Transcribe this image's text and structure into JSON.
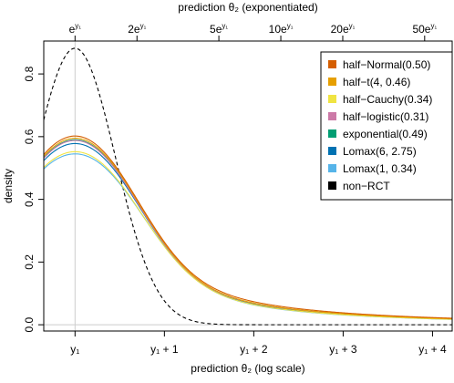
{
  "chart_data": {
    "type": "line",
    "xlabel": "prediction θ₂ (log scale)",
    "top_xlabel": "prediction θ₂ (exponentiated)",
    "ylabel": "density",
    "xlim": [
      -0.35,
      4.22
    ],
    "ylim": [
      -0.02,
      0.905
    ],
    "grid": false,
    "legend_position": "top-right",
    "vline_x": 0,
    "x_ticks": [
      {
        "value": 0,
        "label": "y₁"
      },
      {
        "value": 1,
        "label": "y₁ + 1"
      },
      {
        "value": 2,
        "label": "y₁ + 2"
      },
      {
        "value": 3,
        "label": "y₁ + 3"
      },
      {
        "value": 4,
        "label": "y₁ + 4"
      }
    ],
    "y_ticks": [
      {
        "value": 0.0,
        "label": "0.0"
      },
      {
        "value": 0.2,
        "label": "0.2"
      },
      {
        "value": 0.4,
        "label": "0.4"
      },
      {
        "value": 0.6,
        "label": "0.6"
      },
      {
        "value": 0.8,
        "label": "0.8"
      }
    ],
    "top_ticks": [
      {
        "value": 0,
        "prefix": "",
        "suffix": "e",
        "sup": "y₁"
      },
      {
        "value": 0.6931,
        "prefix": "",
        "suffix": "2e",
        "sup": "y₁"
      },
      {
        "value": 1.6094,
        "prefix": "",
        "suffix": "5e",
        "sup": "y₁"
      },
      {
        "value": 2.3026,
        "prefix": "",
        "suffix": "10e",
        "sup": "y₁"
      },
      {
        "value": 2.9957,
        "prefix": "",
        "suffix": "20e",
        "sup": "y₁"
      },
      {
        "value": 3.912,
        "prefix": "",
        "suffix": "50e",
        "sup": "y₁"
      }
    ],
    "series": [
      {
        "name": "half−Normal(0.50)",
        "color": "#D55E00",
        "peak": 0.602,
        "scale": 0.6,
        "tailw": 0.4,
        "taild": 1.3,
        "dashed": false
      },
      {
        "name": "half−t(4, 0.46)",
        "color": "#E69F00",
        "peak": 0.595,
        "scale": 0.605,
        "tailw": 0.4,
        "taild": 1.25,
        "dashed": false
      },
      {
        "name": "half−Cauchy(0.34)",
        "color": "#F0E442",
        "peak": 0.552,
        "scale": 0.62,
        "tailw": 0.42,
        "taild": 1.2,
        "dashed": false
      },
      {
        "name": "half−logistic(0.31)",
        "color": "#CC79A7",
        "peak": 0.588,
        "scale": 0.605,
        "tailw": 0.4,
        "taild": 1.25,
        "dashed": false
      },
      {
        "name": "exponential(0.49)",
        "color": "#009E73",
        "peak": 0.59,
        "scale": 0.605,
        "tailw": 0.4,
        "taild": 1.25,
        "dashed": false
      },
      {
        "name": "Lomax(6, 2.75)",
        "color": "#0072B2",
        "peak": 0.578,
        "scale": 0.61,
        "tailw": 0.41,
        "taild": 1.22,
        "dashed": false
      },
      {
        "name": "Lomax(1, 0.34)",
        "color": "#56B4E9",
        "peak": 0.545,
        "scale": 0.625,
        "tailw": 0.43,
        "taild": 1.18,
        "dashed": false
      },
      {
        "name": "non−RCT",
        "color": "#000000",
        "peak": 0.882,
        "scale": 0.452,
        "tailw": 0.0,
        "taild": 1.0,
        "dashed": true
      }
    ]
  }
}
